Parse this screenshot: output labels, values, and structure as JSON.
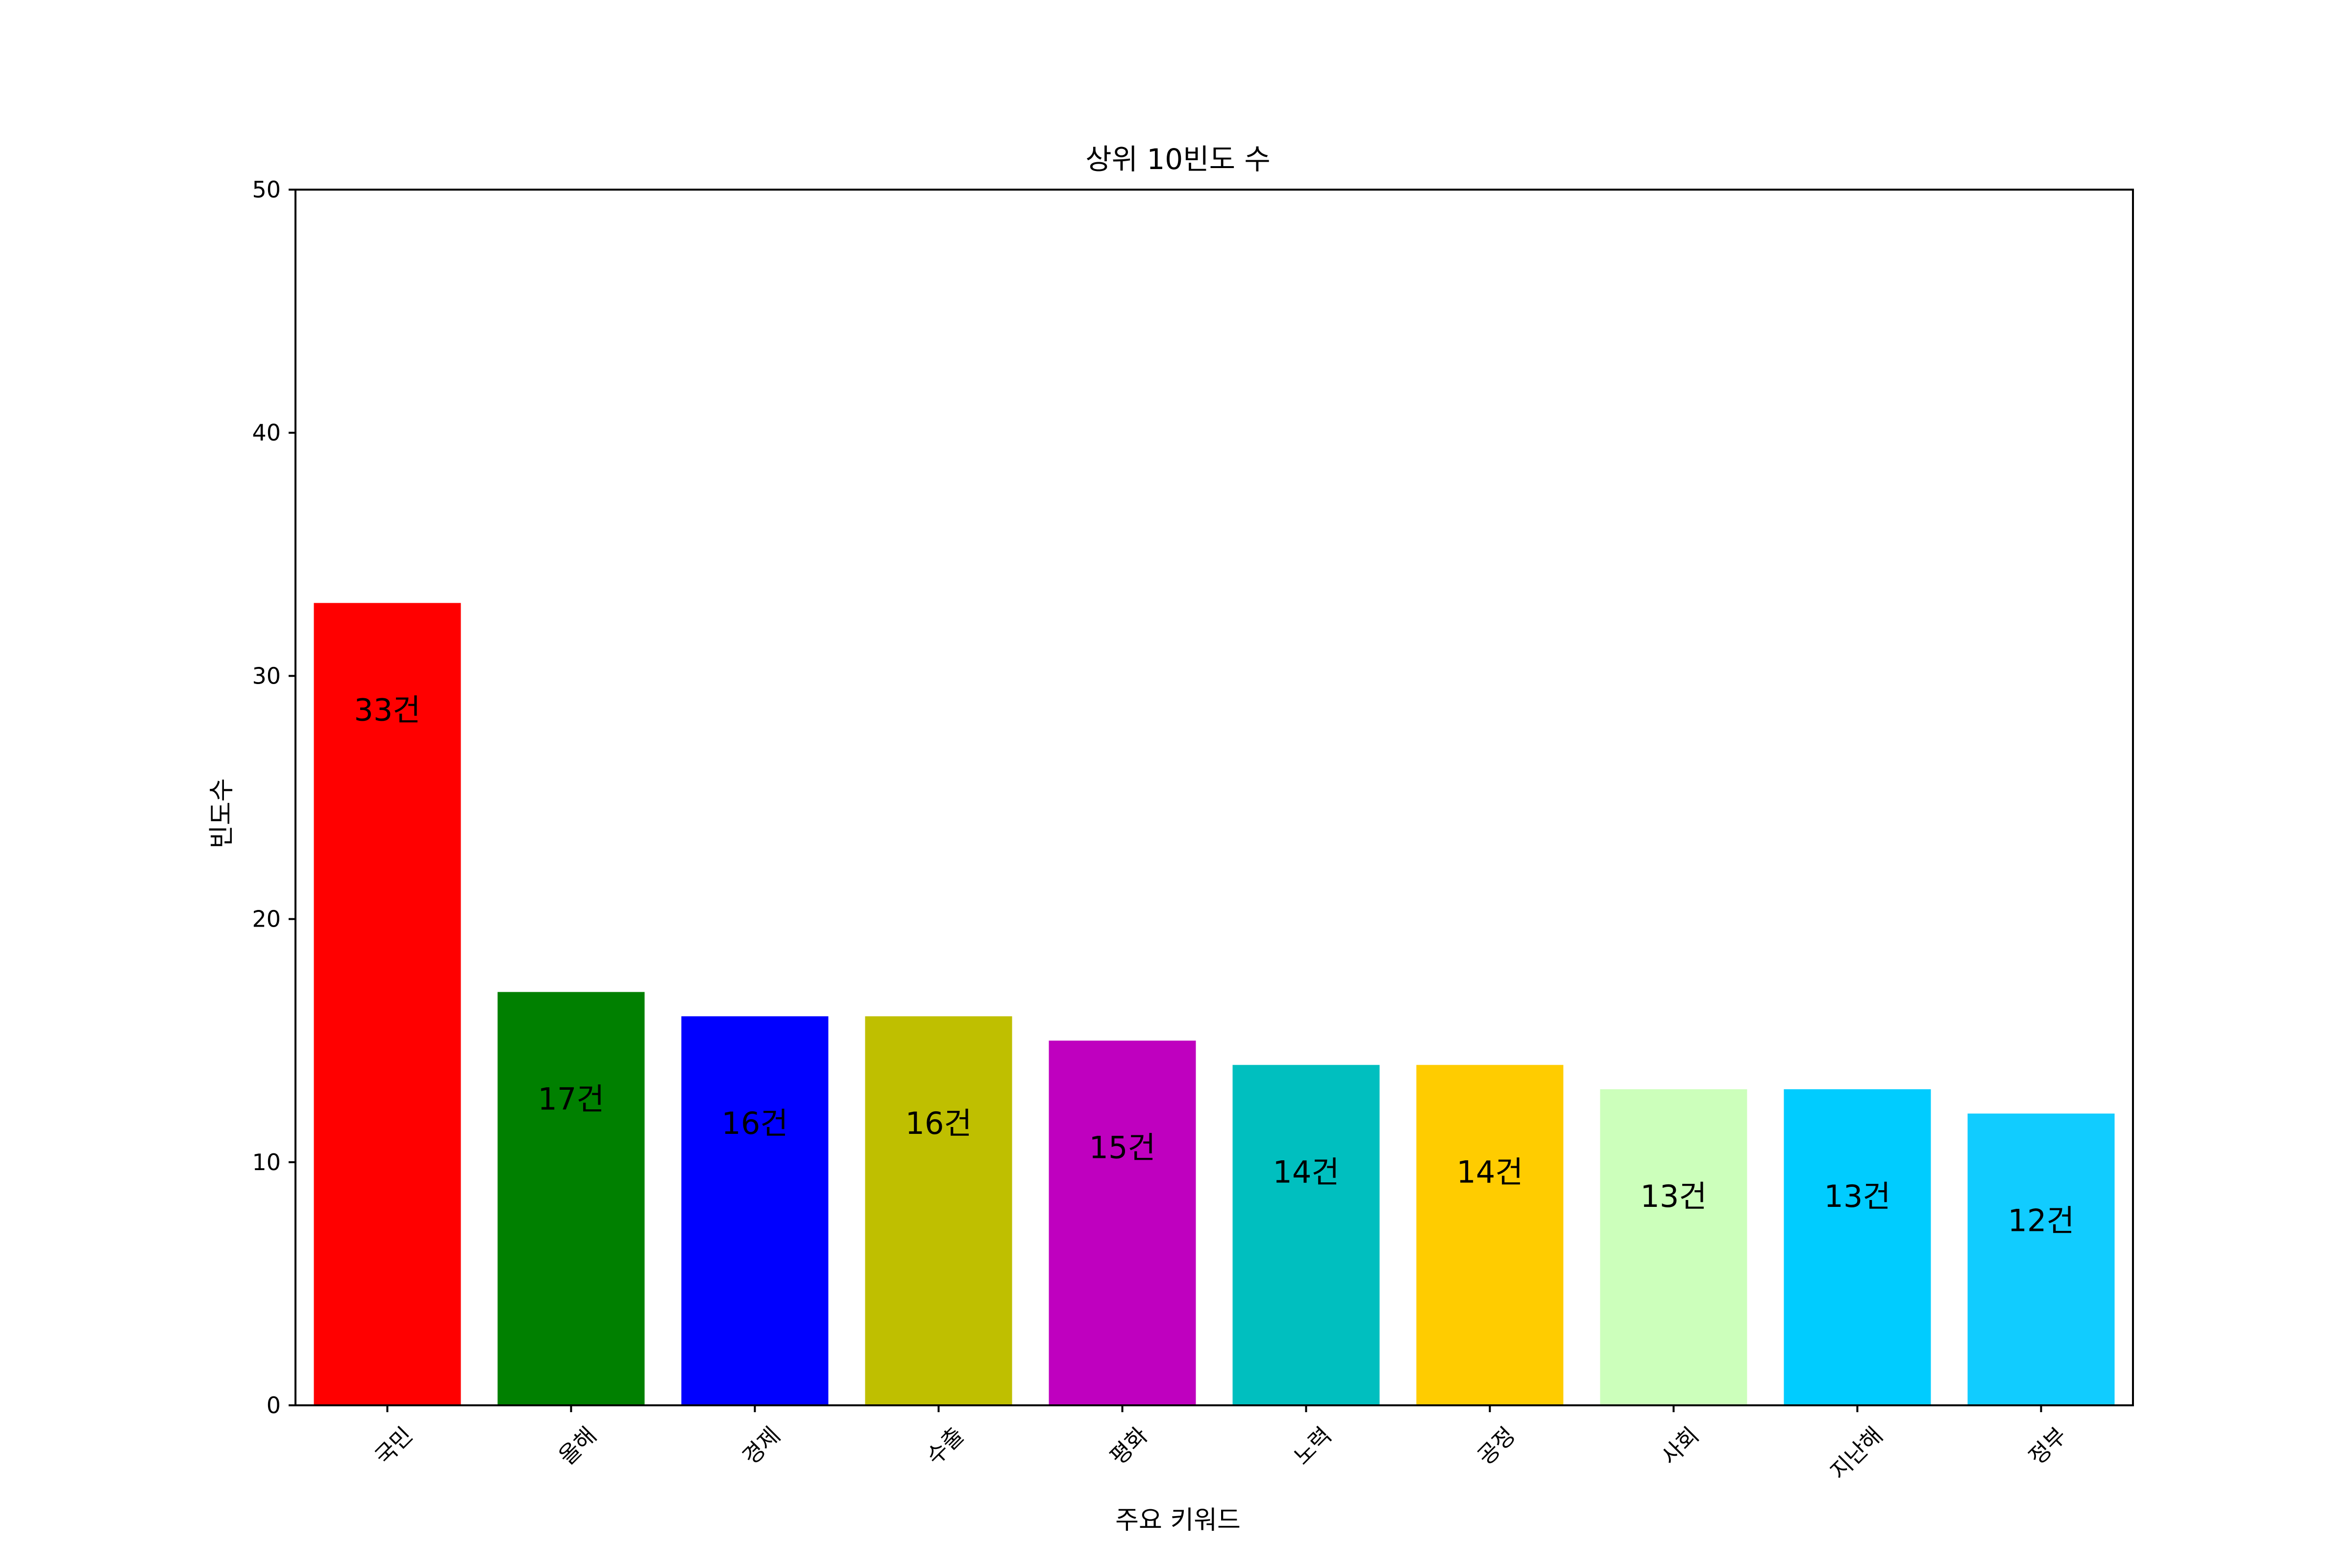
{
  "chart_data": {
    "type": "bar",
    "title": "상위 10빈도 수",
    "xlabel": "주요 키워드",
    "ylabel": "빈도수",
    "ylim": [
      0,
      50
    ],
    "yticks": [
      0,
      10,
      20,
      30,
      40,
      50
    ],
    "categories": [
      "국민",
      "올해",
      "경제",
      "수출",
      "평화",
      "노력",
      "공정",
      "사회",
      "지난해",
      "정부"
    ],
    "values": [
      33,
      17,
      16,
      16,
      15,
      14,
      14,
      13,
      13,
      12
    ],
    "data_labels": [
      "33건",
      "17건",
      "16건",
      "16건",
      "15건",
      "14건",
      "14건",
      "13건",
      "13건",
      "12건"
    ],
    "colors": [
      "#ff0000",
      "#008000",
      "#0000ff",
      "#bfbf00",
      "#bf00bf",
      "#00bfbf",
      "#ffcc00",
      "#ccffbb",
      "#00ccff",
      "#11ccff"
    ],
    "grid": false,
    "legend": "none"
  }
}
